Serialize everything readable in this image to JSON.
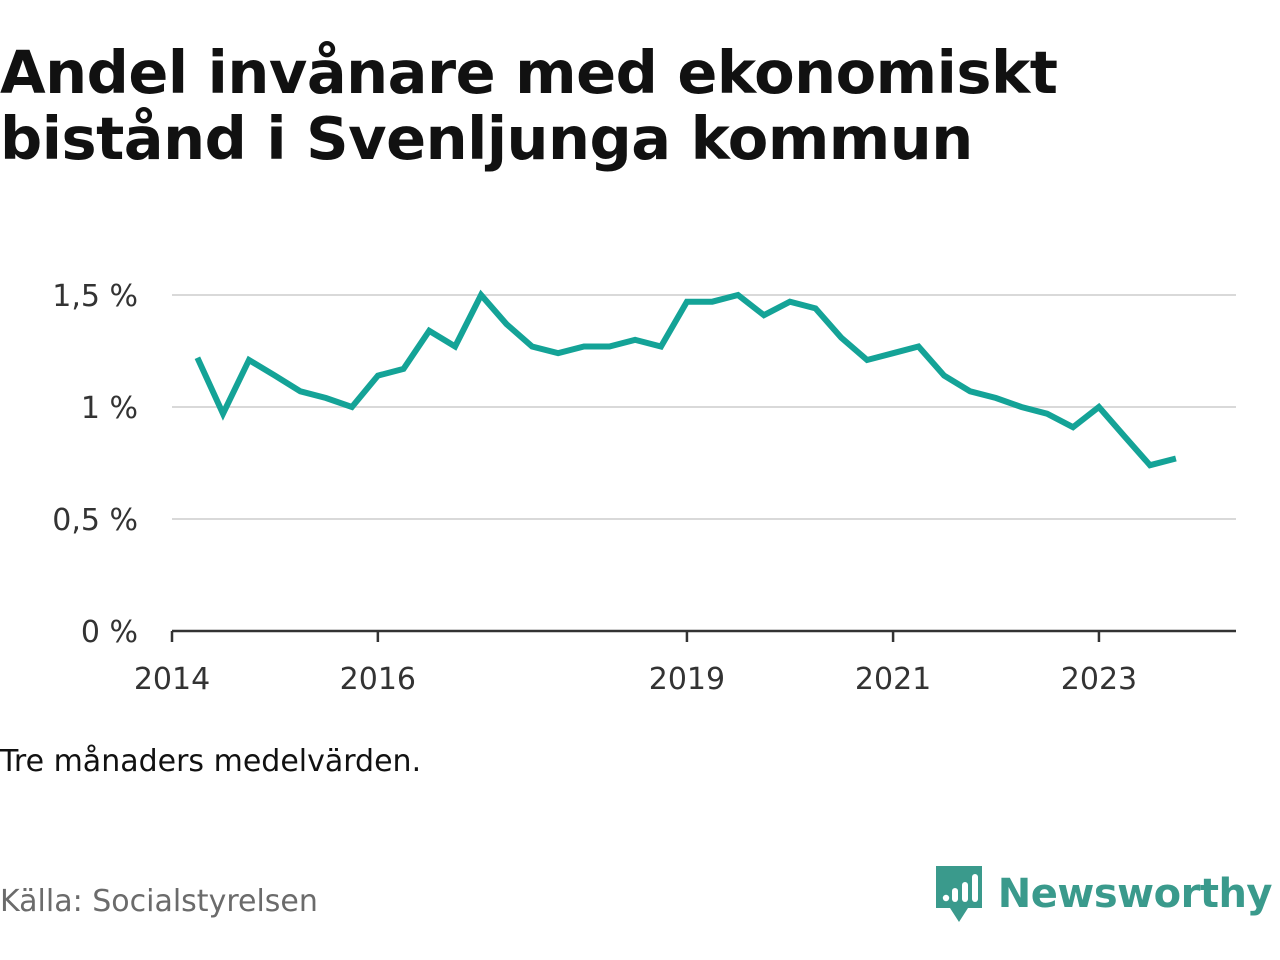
{
  "title_line1": "Andel invånare med ekonomiskt",
  "title_line2": "bistånd i Svenljunga kommun",
  "note": "Tre månaders medelvärden.",
  "source": "Källa: Socialstyrelsen",
  "brand": {
    "name": "Newsworthy",
    "icon": "newsworthy-logo-icon",
    "color": "#3a9a8c"
  },
  "colors": {
    "line": "#14a397",
    "grid": "#d9d9d9",
    "axis": "#333333",
    "tick_text": "#333333"
  },
  "chart_data": {
    "type": "line",
    "title": "Andel invånare med ekonomiskt bistånd i Svenljunga kommun",
    "xlabel": "",
    "ylabel": "",
    "xlim": [
      "2014-01-01",
      "2024-05-01"
    ],
    "ylim": [
      0,
      1.5
    ],
    "x_ticks": [
      {
        "date": "2014-01-01",
        "label": "2014"
      },
      {
        "date": "2016-01-01",
        "label": "2016"
      },
      {
        "date": "2019-01-01",
        "label": "2019"
      },
      {
        "date": "2021-01-01",
        "label": "2021"
      },
      {
        "date": "2023-01-01",
        "label": "2023"
      }
    ],
    "y_ticks": [
      {
        "value": 0,
        "label": "0 %"
      },
      {
        "value": 0.5,
        "label": "0,5 %"
      },
      {
        "value": 1,
        "label": "1 %"
      },
      {
        "value": 1.5,
        "label": "1,5 %"
      }
    ],
    "grid": true,
    "series": [
      {
        "x": [
          "2014-04-01",
          "2014-07-01",
          "2014-10-01",
          "2015-01-01",
          "2015-04-01",
          "2015-07-01",
          "2015-10-01",
          "2016-01-01",
          "2016-04-01",
          "2016-07-01",
          "2016-10-01",
          "2017-01-01",
          "2017-04-01",
          "2017-07-01",
          "2017-10-01",
          "2018-01-01",
          "2018-04-01",
          "2018-07-01",
          "2018-10-01",
          "2019-01-01",
          "2019-04-01",
          "2019-07-01",
          "2019-10-01",
          "2020-01-01",
          "2020-04-01",
          "2020-07-01",
          "2020-10-01",
          "2021-01-01",
          "2021-04-01",
          "2021-07-01",
          "2021-10-01",
          "2022-01-01",
          "2022-04-01",
          "2022-07-01",
          "2022-10-01",
          "2023-01-01",
          "2023-04-01",
          "2023-07-01",
          "2023-10-01"
        ],
        "values": [
          1.22,
          0.97,
          1.21,
          1.14,
          1.07,
          1.04,
          1.0,
          1.14,
          1.17,
          1.34,
          1.27,
          1.5,
          1.37,
          1.27,
          1.24,
          1.27,
          1.27,
          1.3,
          1.27,
          1.47,
          1.47,
          1.5,
          1.41,
          1.47,
          1.44,
          1.31,
          1.21,
          1.24,
          1.27,
          1.14,
          1.07,
          1.04,
          1.0,
          0.97,
          0.91,
          1.0,
          0.87,
          0.74,
          0.77
        ]
      }
    ]
  }
}
